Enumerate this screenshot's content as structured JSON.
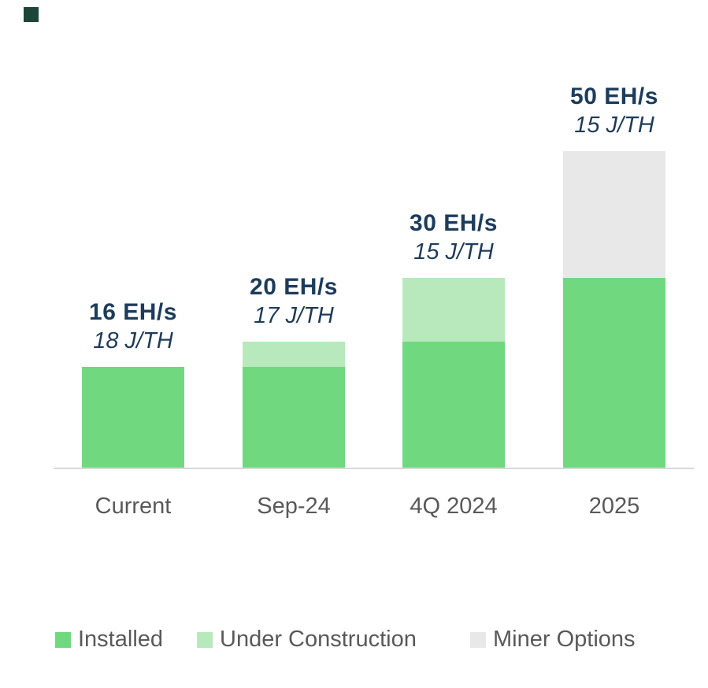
{
  "colors": {
    "installed": "#70d97f",
    "under_construction": "#b7e9bd",
    "miner_options": "#e8e8e8",
    "value_label": "#1d3c5c",
    "axis_line": "#d9d9d9",
    "tick_label": "#595959",
    "legend_label": "#595959",
    "logo_mark": "#1d4639",
    "background": "#ffffff"
  },
  "chart_data": {
    "type": "bar",
    "stacked": true,
    "title": "",
    "xlabel": "",
    "ylabel": "",
    "ylim": [
      0,
      50
    ],
    "grid": false,
    "legend_position": "bottom",
    "categories": [
      "Current",
      "Sep-24",
      "4Q 2024",
      "2025"
    ],
    "series": [
      {
        "name": "Installed",
        "color_key": "installed",
        "values": [
          16,
          16,
          20,
          30
        ]
      },
      {
        "name": "Under Construction",
        "color_key": "under_construction",
        "values": [
          0,
          4,
          10,
          0
        ]
      },
      {
        "name": "Miner Options",
        "color_key": "miner_options",
        "values": [
          0,
          0,
          0,
          20
        ]
      }
    ],
    "totals_ehs": [
      16,
      20,
      30,
      50
    ],
    "efficiency_jth": [
      18,
      17,
      15,
      15
    ],
    "totals_labels": [
      "16 EH/s",
      "20 EH/s",
      "30 EH/s",
      "50 EH/s"
    ],
    "efficiency_labels": [
      "18 J/TH",
      "17 J/TH",
      "15 J/TH",
      "15 J/TH"
    ]
  },
  "legend": {
    "items": [
      {
        "label": "Installed",
        "color_key": "installed"
      },
      {
        "label": "Under Construction",
        "color_key": "under_construction"
      },
      {
        "label": "Miner Options",
        "color_key": "miner_options"
      }
    ]
  }
}
